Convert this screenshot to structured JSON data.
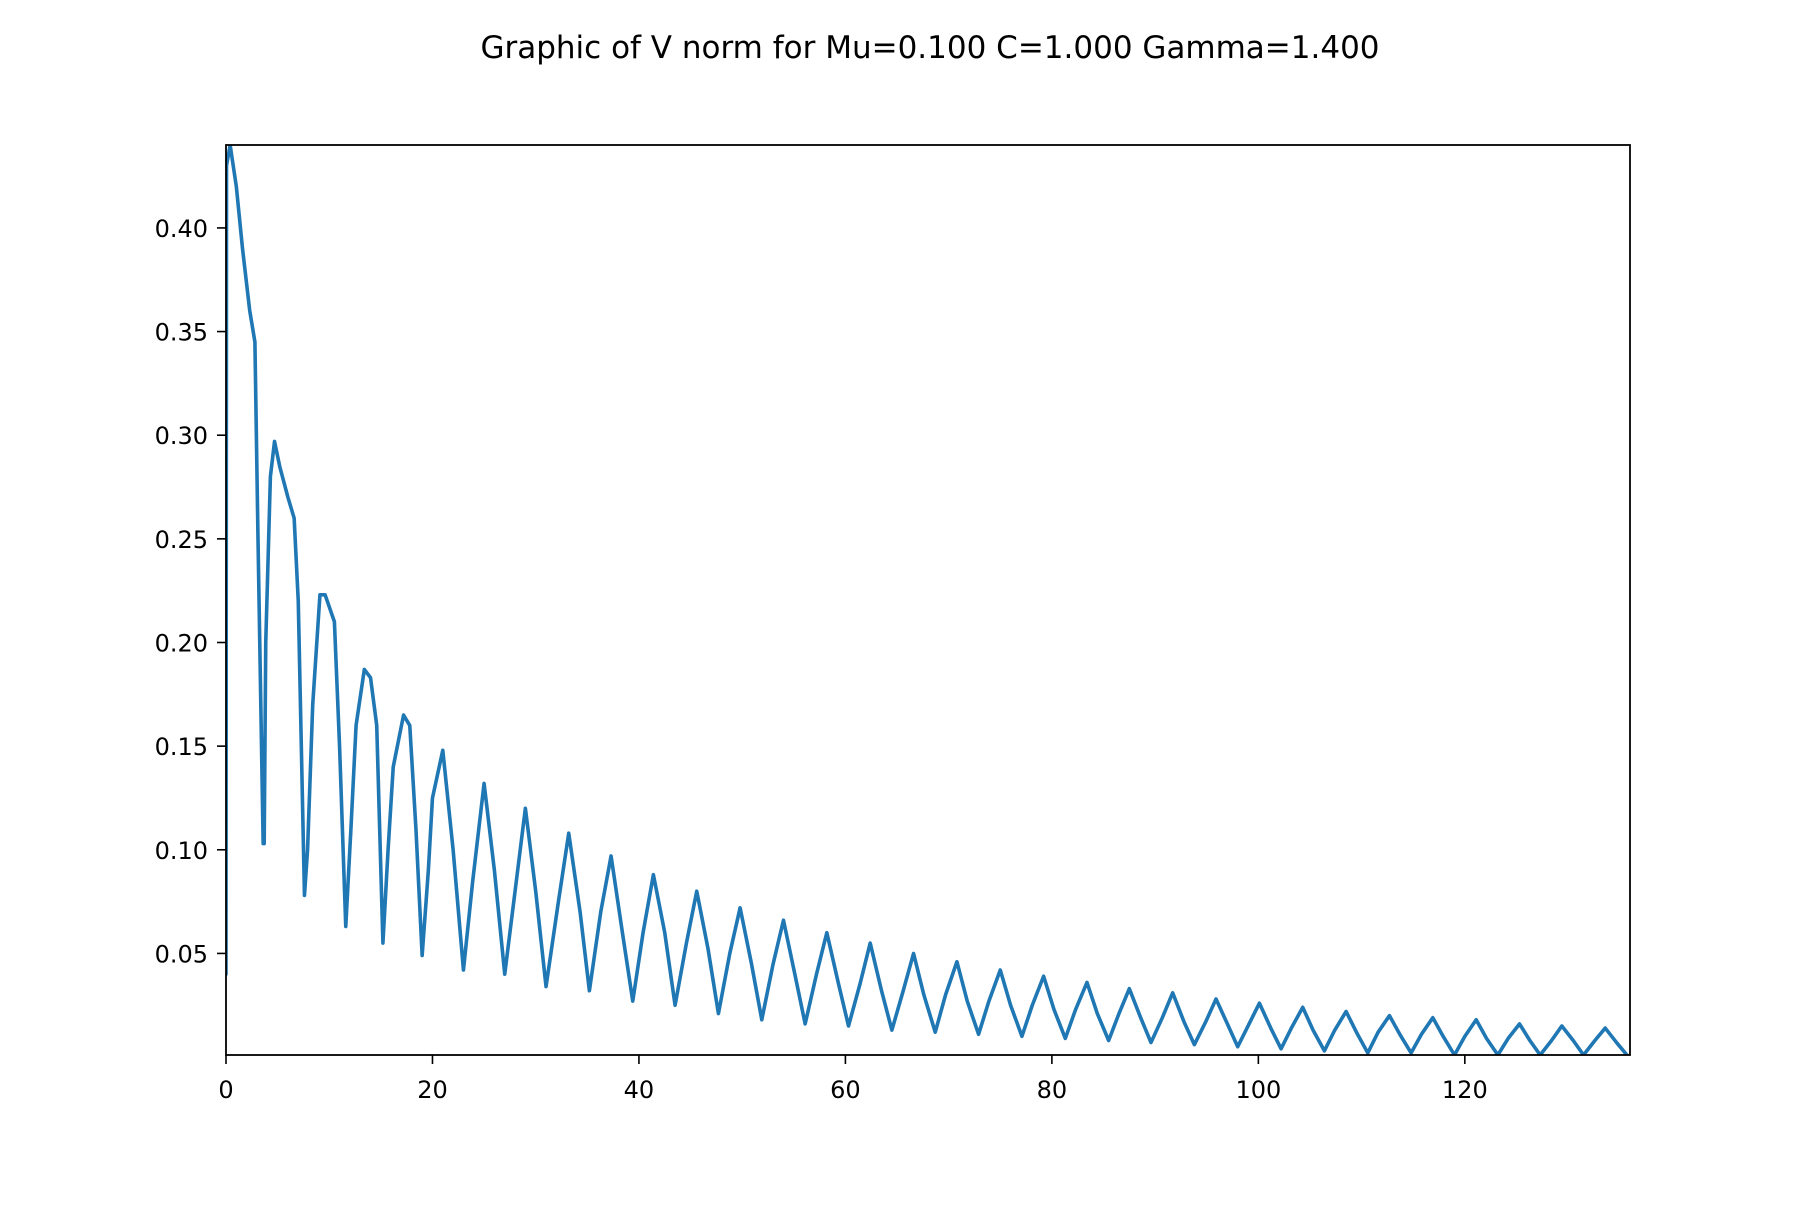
{
  "chart_data": {
    "type": "line",
    "title": "Graphic of V norm for Mu=0.100 C=1.000 Gamma=1.400",
    "xlabel": "",
    "ylabel": "",
    "xlim": [
      0,
      136
    ],
    "ylim": [
      0.001,
      0.44
    ],
    "xticks": [
      0,
      20,
      40,
      60,
      80,
      100,
      120
    ],
    "yticks": [
      0.05,
      0.1,
      0.15,
      0.2,
      0.25,
      0.3,
      0.35,
      0.4
    ],
    "x_tick_labels": [
      "0",
      "20",
      "40",
      "60",
      "80",
      "100",
      "120"
    ],
    "y_tick_labels": [
      "0.05",
      "0.10",
      "0.15",
      "0.20",
      "0.25",
      "0.30",
      "0.35",
      "0.40"
    ],
    "grid": false,
    "line_color": "#1f77b4",
    "series": [
      {
        "x": [
          0.0,
          0.05,
          0.4,
          1.0,
          1.6,
          2.3,
          2.8,
          3.1,
          3.6,
          3.7,
          3.85,
          4.3,
          4.7,
          5.2,
          6.0,
          6.6,
          7.0,
          7.6,
          7.9,
          8.4,
          9.1,
          9.6,
          10.5,
          11.0,
          11.6,
          12.1,
          12.6,
          13.4,
          14.0,
          14.6,
          15.2,
          15.7,
          16.2,
          17.2,
          17.8,
          18.4,
          19.0,
          19.6,
          20.0,
          21.0,
          22.0,
          23.0,
          23.9,
          25.0,
          26.0,
          27.0,
          28.0,
          29.0,
          30.0,
          31.0,
          32.2,
          33.2,
          34.3,
          35.2,
          36.3,
          37.3,
          38.4,
          39.4,
          40.4,
          41.4,
          42.5,
          43.5,
          44.6,
          45.6,
          46.7,
          47.7,
          48.8,
          49.8,
          50.9,
          51.9,
          53.0,
          54.0,
          55.1,
          56.1,
          57.2,
          58.2,
          59.3,
          60.3,
          61.4,
          62.4,
          63.5,
          64.5,
          65.6,
          66.6,
          67.6,
          68.7,
          69.7,
          70.8,
          71.8,
          72.9,
          73.9,
          75.0,
          76.0,
          77.1,
          78.1,
          79.2,
          80.2,
          81.3,
          82.3,
          83.4,
          84.4,
          85.5,
          86.5,
          87.5,
          88.6,
          89.6,
          90.7,
          91.7,
          92.8,
          93.8,
          94.9,
          95.9,
          97.0,
          98.0,
          99.1,
          100.1,
          101.2,
          102.2,
          103.2,
          104.3,
          105.3,
          106.4,
          107.4,
          108.5,
          109.5,
          110.6,
          111.6,
          112.7,
          113.7,
          114.8,
          115.8,
          116.9,
          117.9,
          119.0,
          120.0,
          121.1,
          122.1,
          123.2,
          124.2,
          125.3,
          126.3,
          127.3,
          128.4,
          129.4,
          130.5,
          131.5,
          132.6,
          133.6,
          134.7,
          135.7
        ],
        "y": [
          0.04,
          0.43,
          0.44,
          0.42,
          0.39,
          0.36,
          0.345,
          0.25,
          0.103,
          0.103,
          0.2,
          0.28,
          0.297,
          0.285,
          0.27,
          0.26,
          0.22,
          0.078,
          0.1,
          0.17,
          0.223,
          0.223,
          0.21,
          0.15,
          0.063,
          0.11,
          0.16,
          0.187,
          0.183,
          0.16,
          0.055,
          0.1,
          0.14,
          0.165,
          0.16,
          0.11,
          0.049,
          0.09,
          0.125,
          0.148,
          0.1,
          0.042,
          0.085,
          0.132,
          0.09,
          0.04,
          0.08,
          0.12,
          0.08,
          0.034,
          0.075,
          0.108,
          0.07,
          0.032,
          0.07,
          0.097,
          0.06,
          0.027,
          0.06,
          0.088,
          0.06,
          0.025,
          0.055,
          0.08,
          0.052,
          0.021,
          0.05,
          0.072,
          0.045,
          0.018,
          0.045,
          0.066,
          0.04,
          0.016,
          0.04,
          0.06,
          0.036,
          0.015,
          0.035,
          0.055,
          0.032,
          0.013,
          0.032,
          0.05,
          0.03,
          0.012,
          0.03,
          0.046,
          0.027,
          0.011,
          0.027,
          0.042,
          0.025,
          0.01,
          0.025,
          0.039,
          0.023,
          0.009,
          0.023,
          0.036,
          0.021,
          0.008,
          0.021,
          0.033,
          0.019,
          0.007,
          0.019,
          0.031,
          0.017,
          0.006,
          0.017,
          0.028,
          0.016,
          0.005,
          0.016,
          0.026,
          0.014,
          0.004,
          0.014,
          0.024,
          0.013,
          0.003,
          0.013,
          0.022,
          0.012,
          0.002,
          0.012,
          0.02,
          0.011,
          0.002,
          0.011,
          0.019,
          0.01,
          0.001,
          0.01,
          0.018,
          0.009,
          0.001,
          0.009,
          0.016,
          0.008,
          0.001,
          0.008,
          0.015,
          0.008,
          0.001,
          0.008,
          0.014,
          0.007,
          0.001
        ]
      }
    ]
  }
}
